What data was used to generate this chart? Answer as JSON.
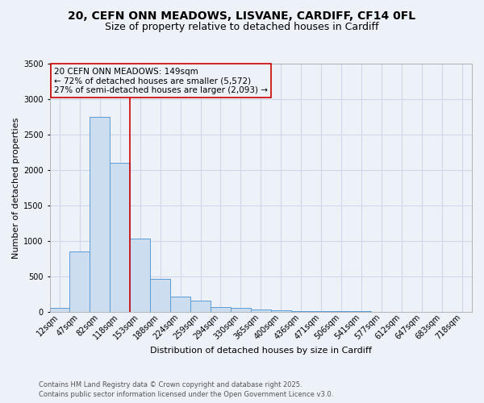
{
  "title_line1": "20, CEFN ONN MEADOWS, LISVANE, CARDIFF, CF14 0FL",
  "title_line2": "Size of property relative to detached houses in Cardiff",
  "xlabel": "Distribution of detached houses by size in Cardiff",
  "ylabel": "Number of detached properties",
  "bar_labels": [
    "12sqm",
    "47sqm",
    "82sqm",
    "118sqm",
    "153sqm",
    "188sqm",
    "224sqm",
    "259sqm",
    "294sqm",
    "330sqm",
    "365sqm",
    "400sqm",
    "436sqm",
    "471sqm",
    "506sqm",
    "541sqm",
    "577sqm",
    "612sqm",
    "647sqm",
    "683sqm",
    "718sqm"
  ],
  "bar_values": [
    50,
    850,
    2750,
    2100,
    1030,
    460,
    210,
    150,
    60,
    50,
    30,
    20,
    10,
    5,
    3,
    2,
    1,
    1,
    1,
    0,
    0
  ],
  "bar_color": "#ccddf0",
  "bar_edge_color": "#5b9bd5",
  "grid_color": "#d0d8e8",
  "background_color": "#edf2f9",
  "vline_x": 3.5,
  "vline_color": "#cc0000",
  "annotation_text": "20 CEFN ONN MEADOWS: 149sqm\n← 72% of detached houses are smaller (5,572)\n27% of semi-detached houses are larger (2,093) →",
  "annotation_box_color": "#cc0000",
  "ylim": [
    0,
    3500
  ],
  "yticks": [
    0,
    500,
    1000,
    1500,
    2000,
    2500,
    3000,
    3500
  ],
  "footer_line1": "Contains HM Land Registry data © Crown copyright and database right 2025.",
  "footer_line2": "Contains public sector information licensed under the Open Government Licence v3.0.",
  "title_fontsize": 10,
  "subtitle_fontsize": 9,
  "tick_fontsize": 7,
  "ylabel_fontsize": 8,
  "xlabel_fontsize": 8,
  "annotation_fontsize": 7.5,
  "footer_fontsize": 6
}
